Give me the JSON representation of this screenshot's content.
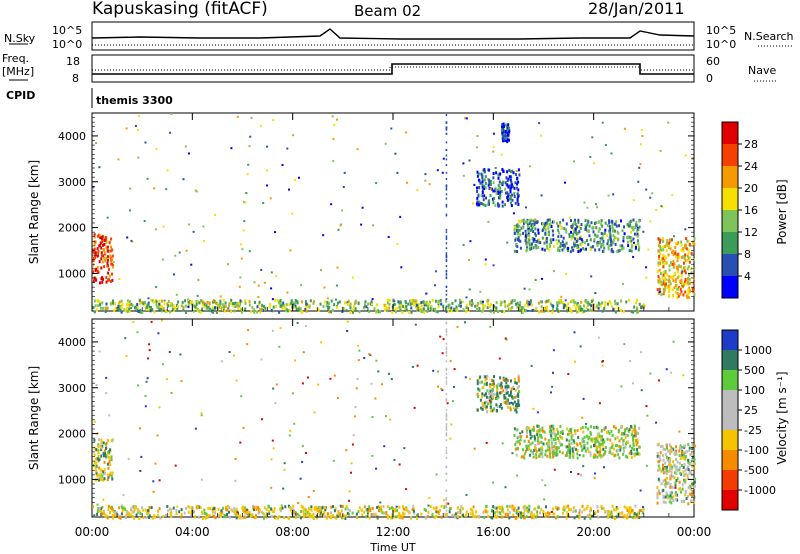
{
  "header": {
    "station": "Kapuskasing (fitACF)",
    "beam": "Beam 02",
    "date": "28/Jan/2011"
  },
  "sky_panel": {
    "left_label": "N.Sky",
    "right_label": "N.Search",
    "left_ticks": [
      "10^5",
      "10^0"
    ],
    "right_ticks": [
      "10^5",
      "10^0"
    ]
  },
  "freq_panel": {
    "left_label_1": "Freq.",
    "left_label_2": "[MHz]",
    "right_label": "Nave",
    "left_ticks": [
      "18",
      "8"
    ],
    "right_ticks": [
      "60",
      "0"
    ]
  },
  "cpid": {
    "label": "CPID",
    "program": "themis 3300"
  },
  "x_axis": {
    "title": "Time UT",
    "ticks": [
      "00:00",
      "04:00",
      "08:00",
      "12:00",
      "16:00",
      "20:00",
      "00:00"
    ]
  },
  "power_colorbar": {
    "title": "Power [dB]",
    "ticks": [
      "4",
      "8",
      "12",
      "16",
      "20",
      "24",
      "28"
    ],
    "colors": [
      "#0000ff",
      "#2850b4",
      "#3c9a5a",
      "#7fc45a",
      "#f5e000",
      "#f59b00",
      "#f54000",
      "#e00000"
    ]
  },
  "velocity_colorbar": {
    "title": "Velocity [m s⁻¹]",
    "ticks": [
      "1000",
      "500",
      "100",
      "25",
      "-25",
      "-100",
      "-500",
      "-1000"
    ],
    "colors": [
      "#1e3cc8",
      "#2f7a60",
      "#5ecb3c",
      "#bdbdbd",
      "#bdbdbd",
      "#f5c400",
      "#f58c00",
      "#f53c00",
      "#e00000"
    ]
  },
  "chart_data": [
    {
      "type": "heatmap",
      "panel": "power",
      "title": "Power [dB]",
      "xlabel": "Time UT",
      "ylabel": "Slant Range [km]",
      "xlim": [
        "00:00",
        "24:00"
      ],
      "ylim": [
        180,
        4500
      ],
      "y_ticks": [
        "1000",
        "2000",
        "3000",
        "4000"
      ],
      "features": [
        {
          "t_start": 0.0,
          "t_end": 0.8,
          "range_min": 800,
          "range_max": 1900,
          "power_db": 28
        },
        {
          "t_start": 16.8,
          "t_end": 21.8,
          "range_min": 1500,
          "range_max": 2200,
          "power_db": 10
        },
        {
          "t_start": 15.3,
          "t_end": 17.0,
          "range_min": 2500,
          "range_max": 3300,
          "power_db": 6
        },
        {
          "t_start": 16.3,
          "t_end": 16.6,
          "range_min": 3900,
          "range_max": 4300,
          "power_db": 4
        },
        {
          "t_start": 22.5,
          "t_end": 24.0,
          "range_min": 500,
          "range_max": 1800,
          "power_db": 20
        },
        {
          "t_start": 0.0,
          "t_end": 22.0,
          "range_min": 180,
          "range_max": 450,
          "power_db": 14
        }
      ]
    },
    {
      "type": "heatmap",
      "panel": "velocity",
      "title": "Velocity [m s⁻¹]",
      "xlabel": "Time UT",
      "ylabel": "Slant Range [km]",
      "xlim": [
        "00:00",
        "24:00"
      ],
      "ylim": [
        180,
        4500
      ],
      "y_ticks": [
        "1000",
        "2000",
        "3000",
        "4000"
      ],
      "features": [
        {
          "t_start": 0.0,
          "t_end": 0.8,
          "range_min": 1000,
          "range_max": 1900,
          "velocity": -100
        },
        {
          "t_start": 16.8,
          "t_end": 21.8,
          "range_min": 1500,
          "range_max": 2200,
          "velocity": 100
        },
        {
          "t_start": 15.3,
          "t_end": 17.0,
          "range_min": 2500,
          "range_max": 3300,
          "velocity": 500
        },
        {
          "t_start": 22.5,
          "t_end": 24.0,
          "range_min": 500,
          "range_max": 1800,
          "velocity": 0
        },
        {
          "t_start": 0.0,
          "t_end": 22.0,
          "range_min": 180,
          "range_max": 450,
          "velocity": -100
        }
      ]
    }
  ]
}
